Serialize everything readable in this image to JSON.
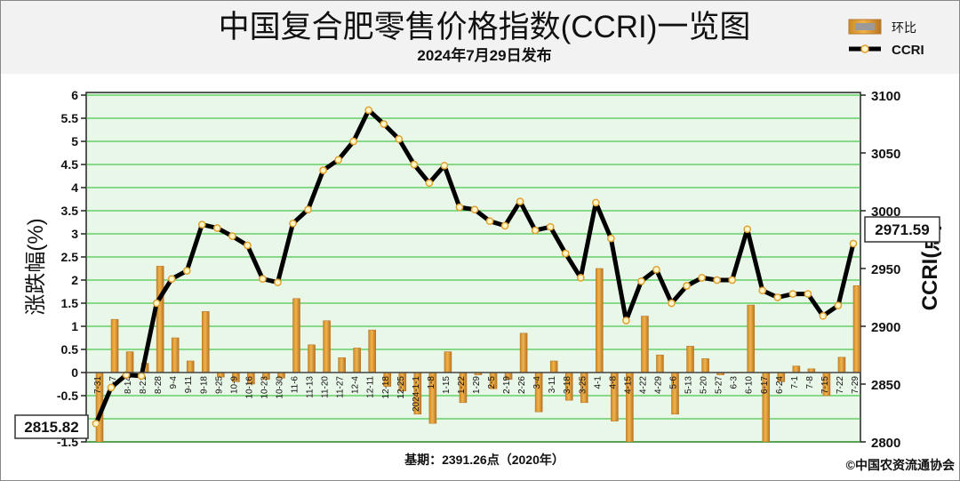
{
  "header": {
    "title": "中国复合肥零售价格指数(CCRI)一览图",
    "subtitle": "2024年7月29日发布"
  },
  "footer": {
    "base": "基期：2391.26点（2020年）",
    "copyright": "©中国农资流通协会"
  },
  "colors": {
    "plot_bg": "#e9f7e9",
    "grid": "#22bb22",
    "bar": "#e0a030",
    "bar_edge": "#b8782a",
    "line": "#000000",
    "marker_fill": "#fff6c8",
    "marker_edge": "#e0a030"
  },
  "chart_data": {
    "type": "bar+line",
    "categories": [
      "7-31",
      "8-7",
      "8-14",
      "8-21",
      "8-28",
      "9-4",
      "9-11",
      "9-18",
      "9-25",
      "10-9",
      "10-16",
      "10-23",
      "10-30",
      "11-6",
      "11-13",
      "11-20",
      "11-27",
      "12-4",
      "12-11",
      "12-18",
      "12-25",
      "2024-1-1",
      "1-8",
      "1-15",
      "1-22",
      "1-29",
      "2-5",
      "2-19",
      "2-26",
      "3-4",
      "3-11",
      "3-18",
      "3-25",
      "4-1",
      "4-8",
      "4-15",
      "4-22",
      "4-29",
      "5-6",
      "5-13",
      "5-20",
      "5-27",
      "6-3",
      "6-10",
      "6-17",
      "6-24",
      "7-1",
      "7-8",
      "7-15",
      "7-22",
      "7-29"
    ],
    "series": [
      {
        "name": "环比",
        "type": "bar",
        "axis": "left",
        "values": [
          -1.5,
          1.15,
          0.45,
          0.2,
          2.3,
          0.75,
          0.25,
          1.32,
          -0.1,
          -0.2,
          -0.25,
          -0.15,
          -0.12,
          1.6,
          0.6,
          1.12,
          0.32,
          0.53,
          0.92,
          -0.3,
          -0.4,
          -0.9,
          -1.1,
          0.45,
          -0.65,
          -0.05,
          -0.35,
          -0.15,
          0.85,
          -0.85,
          0.25,
          -0.6,
          -0.65,
          2.25,
          -1.05,
          -1.5,
          1.22,
          0.38,
          -0.9,
          0.57,
          0.3,
          -0.05,
          0.0,
          1.46,
          -1.5,
          -0.2,
          0.14,
          0.08,
          -0.5,
          0.33,
          1.88
        ]
      },
      {
        "name": "CCRI",
        "type": "line",
        "axis": "right",
        "values": [
          2815.82,
          2847,
          2858,
          2857,
          2920,
          2941,
          2948,
          2988,
          2985,
          2978,
          2970,
          2941,
          2938,
          2989,
          3001,
          3035,
          3044,
          3060,
          3087,
          3075,
          3062,
          3040,
          3024,
          3039,
          3003,
          3001,
          2991,
          2987,
          3008,
          2983,
          2986,
          2963,
          2942,
          3007,
          2976,
          2905,
          2939,
          2949,
          2920,
          2935,
          2942,
          2940,
          2940,
          2984,
          2931,
          2925,
          2928,
          2928,
          2909,
          2918,
          2971.59
        ]
      }
    ],
    "left_axis": {
      "label": "涨跌幅(%)",
      "min": -1.5,
      "max": 6,
      "ticks": [
        "-1.5",
        "-1",
        "-0.5",
        "0",
        "0.5",
        "1",
        "1.5",
        "2",
        "2.5",
        "3",
        "3.5",
        "4",
        "4.5",
        "5",
        "5.5",
        "6"
      ]
    },
    "right_axis": {
      "label": "CCRI(点)",
      "min": 2800,
      "max": 3100,
      "ticks": [
        "2800",
        "2850",
        "2900",
        "2950",
        "3000",
        "3050",
        "3100"
      ]
    },
    "callouts": {
      "first": "2815.82",
      "last": "2971.59"
    },
    "legend": {
      "position": "top-right",
      "items": [
        "环比",
        "CCRI"
      ]
    },
    "grid": true
  }
}
